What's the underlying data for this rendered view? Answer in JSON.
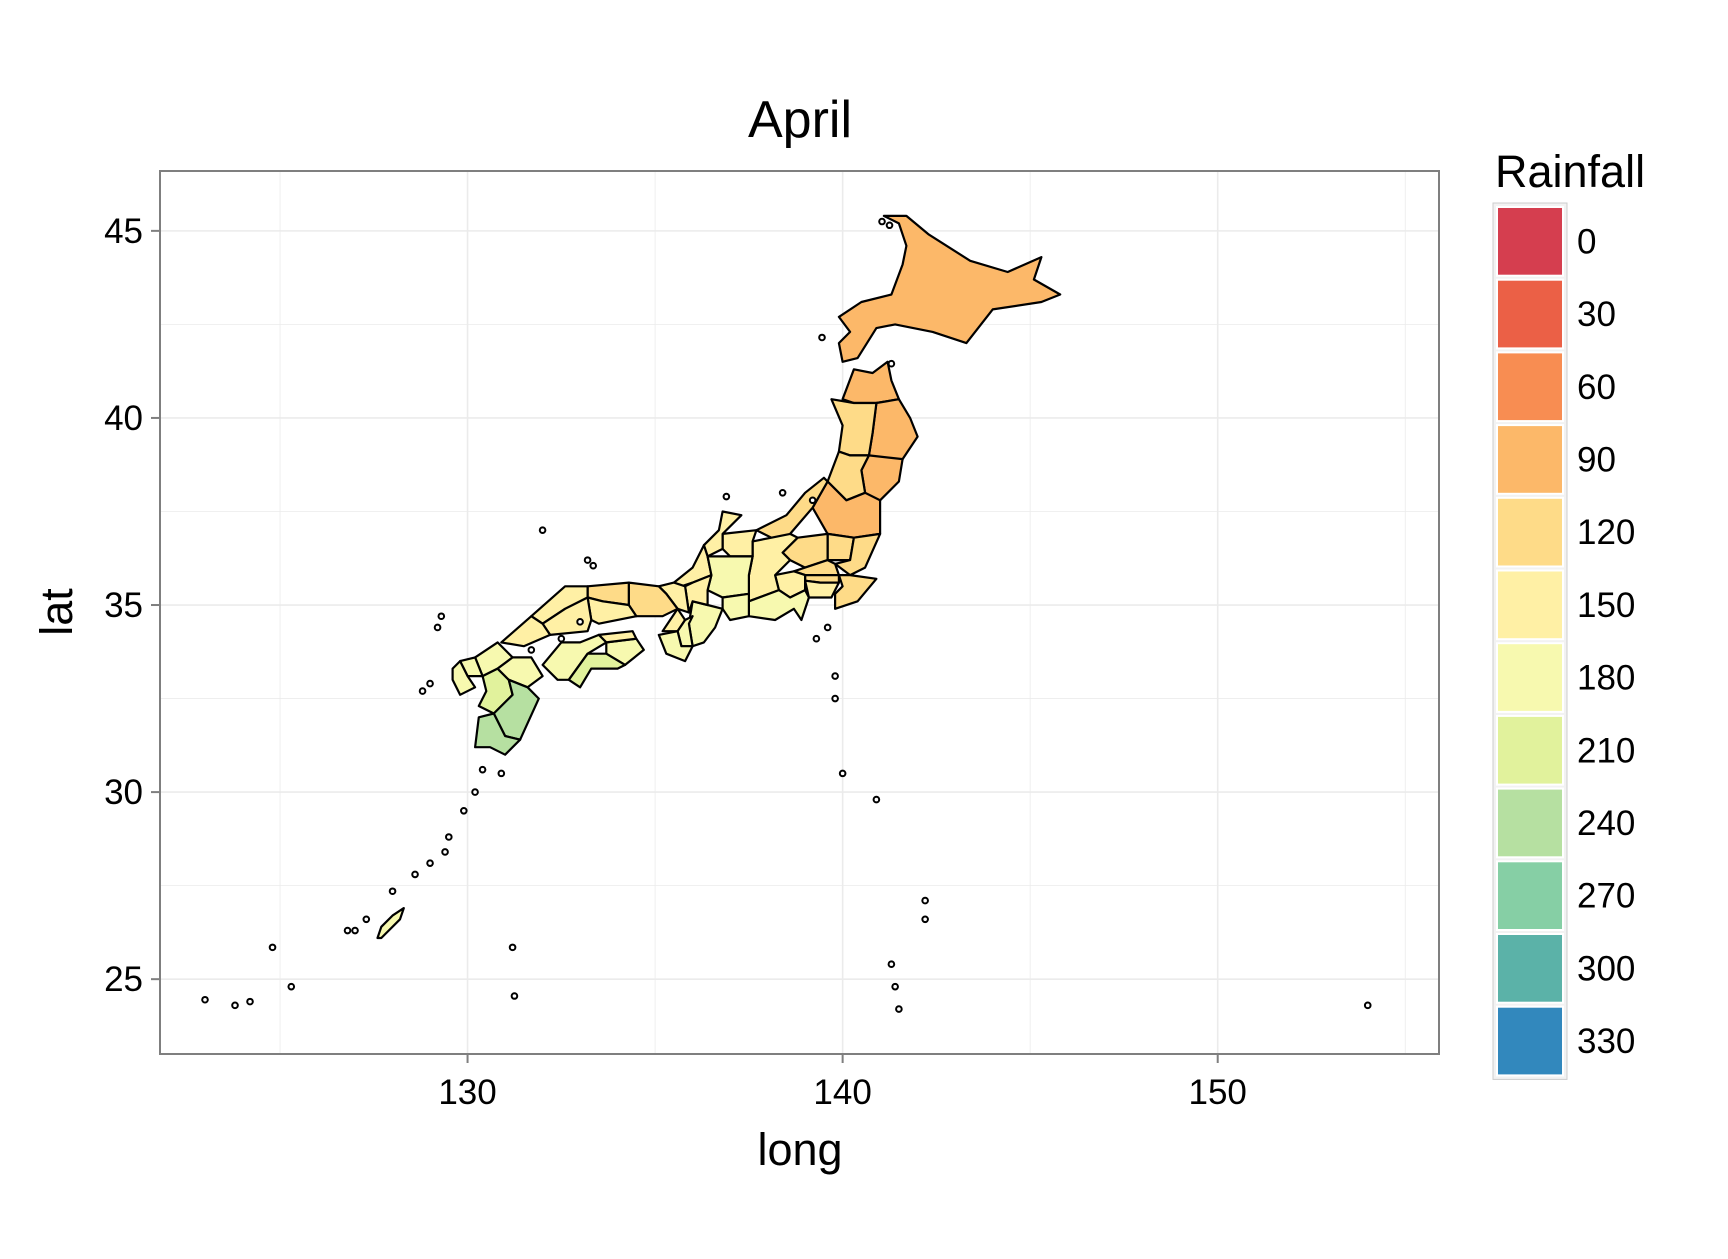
{
  "chart_data": {
    "type": "choropleth",
    "title": "April",
    "xlabel": "long",
    "ylabel": "lat",
    "xlim": [
      121.8,
      155.9
    ],
    "ylim": [
      23.0,
      46.6
    ],
    "x_ticks": [
      130,
      140,
      150
    ],
    "x_tick_labels": [
      "130",
      "140",
      "150"
    ],
    "y_ticks": [
      25,
      30,
      35,
      40,
      45
    ],
    "y_tick_labels": [
      "25",
      "30",
      "35",
      "40",
      "45"
    ],
    "grid": true,
    "panel_background": "#FFFFFF",
    "panel_border": "#7F7F7F",
    "grid_color": "#EBEBEB",
    "legend": {
      "title": "Rainfall",
      "position": "right",
      "breaks": [
        "0",
        "30",
        "60",
        "90",
        "120",
        "150",
        "180",
        "210",
        "240",
        "270",
        "300",
        "330"
      ],
      "colors": [
        "#D53E4F",
        "#EB6046",
        "#F88D52",
        "#FCB869",
        "#FEDB88",
        "#FFF0A5",
        "#F7F9AF",
        "#E1F29C",
        "#B6E0A1",
        "#86CFA5",
        "#5BB2A8",
        "#3288BD"
      ]
    },
    "regions": [
      {
        "name": "Hokkaido",
        "rainfall": 90,
        "lon": 143.0,
        "lat": 43.4
      },
      {
        "name": "Aomori",
        "rainfall": 90,
        "lon": 140.8,
        "lat": 40.8
      },
      {
        "name": "Iwate",
        "rainfall": 90,
        "lon": 141.3,
        "lat": 39.6
      },
      {
        "name": "Akita",
        "rainfall": 120,
        "lon": 140.3,
        "lat": 39.7
      },
      {
        "name": "Miyagi",
        "rainfall": 90,
        "lon": 140.9,
        "lat": 38.5
      },
      {
        "name": "Yamagata",
        "rainfall": 120,
        "lon": 140.1,
        "lat": 38.4
      },
      {
        "name": "Fukushima",
        "rainfall": 90,
        "lon": 140.4,
        "lat": 37.4
      },
      {
        "name": "Niigata",
        "rainfall": 120,
        "lon": 138.9,
        "lat": 37.6
      },
      {
        "name": "Tochigi",
        "rainfall": 120,
        "lon": 139.8,
        "lat": 36.6
      },
      {
        "name": "Ibaraki",
        "rainfall": 120,
        "lon": 140.3,
        "lat": 36.3
      },
      {
        "name": "Gunma",
        "rainfall": 120,
        "lon": 139.0,
        "lat": 36.5
      },
      {
        "name": "Saitama",
        "rainfall": 120,
        "lon": 139.3,
        "lat": 36.0
      },
      {
        "name": "Tokyo",
        "rainfall": 120,
        "lon": 139.5,
        "lat": 35.7
      },
      {
        "name": "Chiba",
        "rainfall": 120,
        "lon": 140.2,
        "lat": 35.5
      },
      {
        "name": "Kanagawa",
        "rainfall": 150,
        "lon": 139.3,
        "lat": 35.4
      },
      {
        "name": "Yamanashi",
        "rainfall": 150,
        "lon": 138.6,
        "lat": 35.6
      },
      {
        "name": "Nagano",
        "rainfall": 150,
        "lon": 138.1,
        "lat": 36.2
      },
      {
        "name": "Toyama",
        "rainfall": 150,
        "lon": 137.2,
        "lat": 36.6
      },
      {
        "name": "Ishikawa",
        "rainfall": 150,
        "lon": 136.7,
        "lat": 36.8
      },
      {
        "name": "Fukui",
        "rainfall": 150,
        "lon": 136.1,
        "lat": 35.9
      },
      {
        "name": "Gifu",
        "rainfall": 180,
        "lon": 137.0,
        "lat": 35.8
      },
      {
        "name": "Shizuoka",
        "rainfall": 180,
        "lon": 138.2,
        "lat": 35.0
      },
      {
        "name": "Aichi",
        "rainfall": 180,
        "lon": 137.2,
        "lat": 35.0
      },
      {
        "name": "Mie",
        "rainfall": 180,
        "lon": 136.4,
        "lat": 34.5
      },
      {
        "name": "Shiga",
        "rainfall": 150,
        "lon": 136.1,
        "lat": 35.2
      },
      {
        "name": "Kyoto",
        "rainfall": 150,
        "lon": 135.5,
        "lat": 35.2
      },
      {
        "name": "Osaka",
        "rainfall": 150,
        "lon": 135.5,
        "lat": 34.6
      },
      {
        "name": "Hyogo",
        "rainfall": 120,
        "lon": 134.8,
        "lat": 35.0
      },
      {
        "name": "Nara",
        "rainfall": 180,
        "lon": 135.9,
        "lat": 34.3
      },
      {
        "name": "Wakayama",
        "rainfall": 180,
        "lon": 135.4,
        "lat": 33.9
      },
      {
        "name": "Tottori",
        "rainfall": 120,
        "lon": 133.9,
        "lat": 35.4
      },
      {
        "name": "Shimane",
        "rainfall": 150,
        "lon": 132.5,
        "lat": 35.0
      },
      {
        "name": "Okayama",
        "rainfall": 150,
        "lon": 133.8,
        "lat": 34.8
      },
      {
        "name": "Hiroshima",
        "rainfall": 150,
        "lon": 132.7,
        "lat": 34.5
      },
      {
        "name": "Yamaguchi",
        "rainfall": 150,
        "lon": 131.6,
        "lat": 34.2
      },
      {
        "name": "Tokushima",
        "rainfall": 180,
        "lon": 134.3,
        "lat": 33.9
      },
      {
        "name": "Kagawa",
        "rainfall": 150,
        "lon": 134.0,
        "lat": 34.2
      },
      {
        "name": "Ehime",
        "rainfall": 180,
        "lon": 132.8,
        "lat": 33.6
      },
      {
        "name": "Kochi",
        "rainfall": 210,
        "lon": 133.3,
        "lat": 33.4
      },
      {
        "name": "Fukuoka",
        "rainfall": 180,
        "lon": 130.6,
        "lat": 33.6
      },
      {
        "name": "Saga",
        "rainfall": 180,
        "lon": 130.1,
        "lat": 33.3
      },
      {
        "name": "Nagasaki",
        "rainfall": 180,
        "lon": 129.8,
        "lat": 32.9
      },
      {
        "name": "Kumamoto",
        "rainfall": 210,
        "lon": 130.8,
        "lat": 32.6
      },
      {
        "name": "Oita",
        "rainfall": 180,
        "lon": 131.4,
        "lat": 33.2
      },
      {
        "name": "Miyazaki",
        "rainfall": 240,
        "lon": 131.3,
        "lat": 32.1
      },
      {
        "name": "Kagoshima",
        "rainfall": 240,
        "lon": 130.6,
        "lat": 31.6
      },
      {
        "name": "Okinawa",
        "rainfall": 180,
        "lon": 127.8,
        "lat": 26.4
      }
    ]
  }
}
